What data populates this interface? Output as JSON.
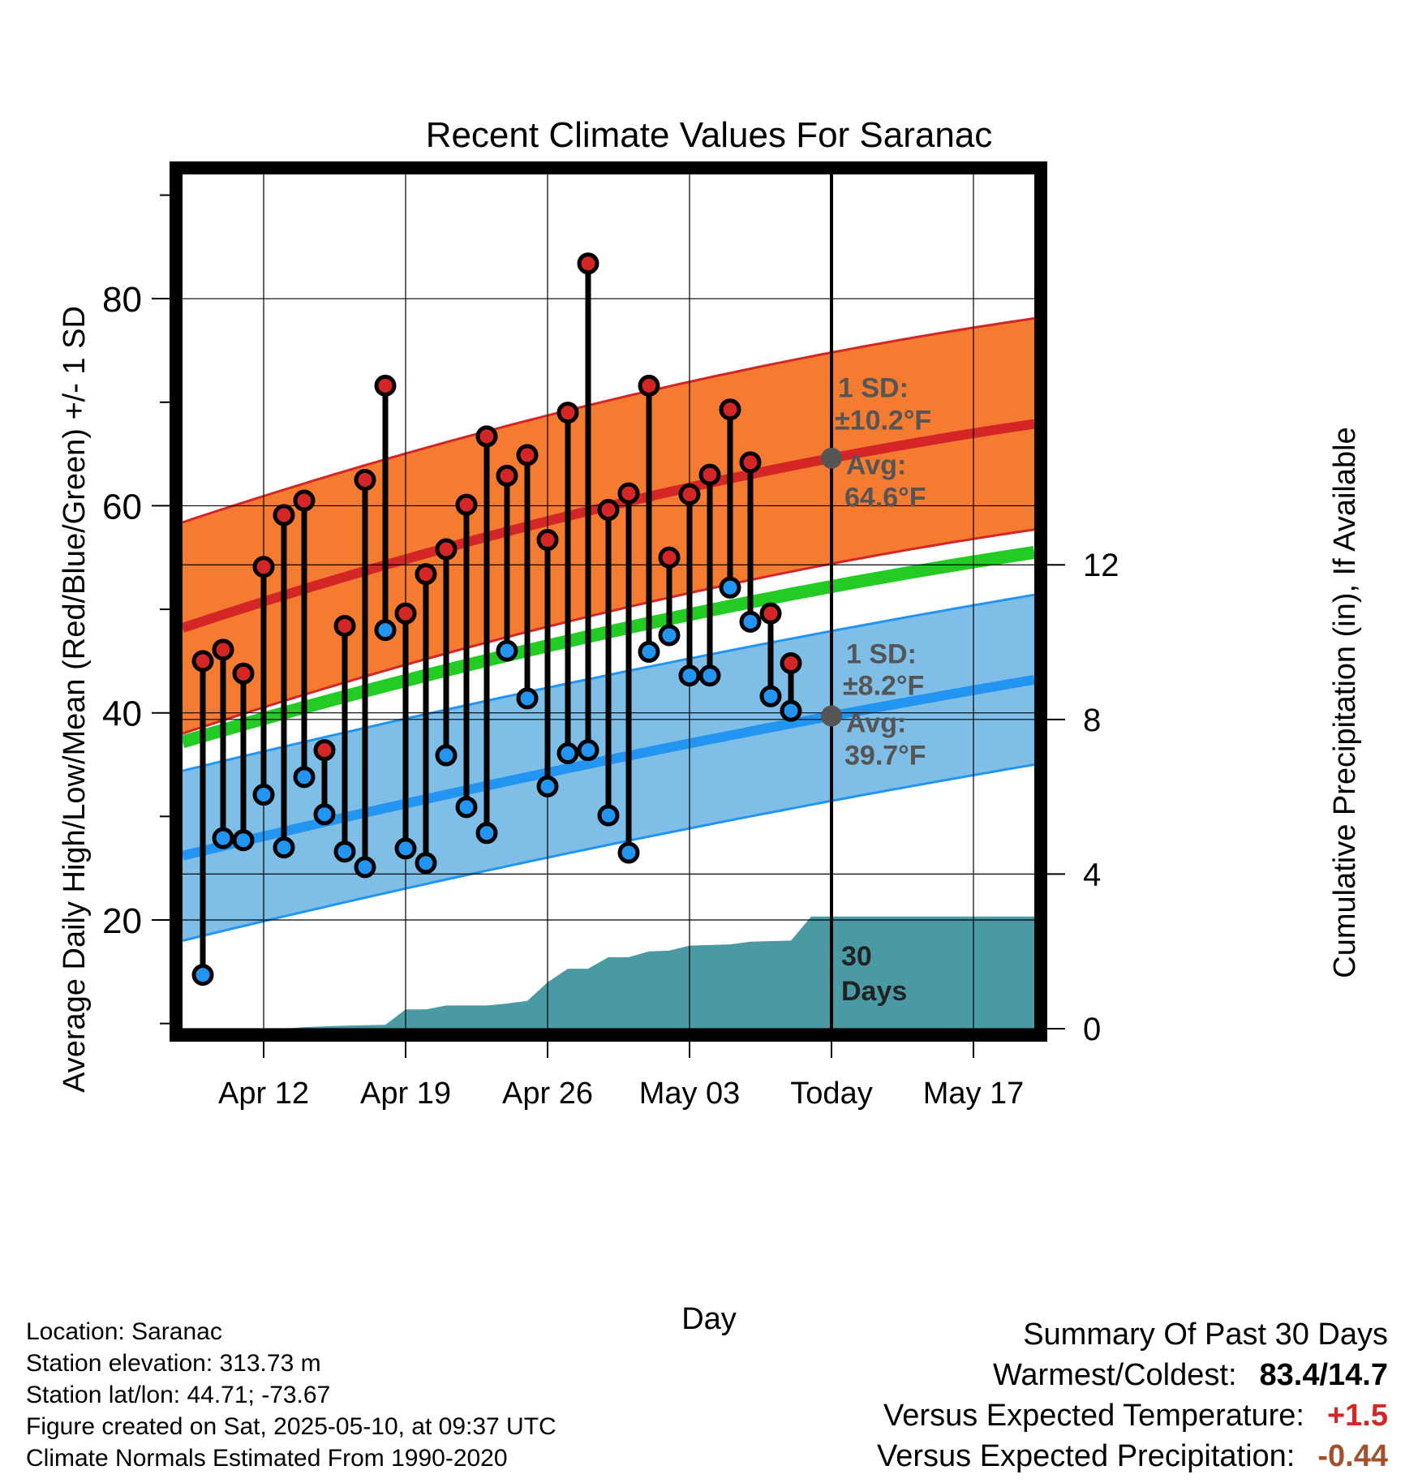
{
  "chart_data": {
    "type": "line",
    "title": "Recent Climate Values For Saranac",
    "xlabel": "Day",
    "ylabel": "Average Daily High/Low/Mean (Red/Blue/Green) +/- 1 SD",
    "y2label": "Cumulative Precipitation (in), If Available",
    "ylim": [
      9.5,
      92
    ],
    "y2lim": [
      0,
      22.1
    ],
    "xlim": [
      "2025-04-08",
      "2025-05-20"
    ],
    "x_ticks": [
      "2025-04-12",
      "2025-04-19",
      "2025-04-26",
      "2025-05-03",
      "2025-05-10",
      "2025-05-17"
    ],
    "x_tick_labels": [
      "Apr 12",
      "Apr 19",
      "Apr 26",
      "May 03",
      "Today",
      "May 17"
    ],
    "y_ticks": [
      20,
      40,
      60,
      80
    ],
    "y2_ticks": [
      0,
      4,
      8,
      12
    ],
    "today": "2025-05-10",
    "grid": true,
    "days": [
      "2025-04-09",
      "2025-04-10",
      "2025-04-11",
      "2025-04-12",
      "2025-04-13",
      "2025-04-14",
      "2025-04-15",
      "2025-04-16",
      "2025-04-17",
      "2025-04-18",
      "2025-04-19",
      "2025-04-20",
      "2025-04-21",
      "2025-04-22",
      "2025-04-23",
      "2025-04-24",
      "2025-04-25",
      "2025-04-26",
      "2025-04-27",
      "2025-04-28",
      "2025-04-29",
      "2025-04-30",
      "2025-05-01",
      "2025-05-02",
      "2025-05-03",
      "2025-05-04",
      "2025-05-05",
      "2025-05-06",
      "2025-05-07",
      "2025-05-08",
      "2025-05-09"
    ],
    "daily_high": [
      45.0,
      46.1,
      43.8,
      54.1,
      59.1,
      60.5,
      36.4,
      48.4,
      62.5,
      71.6,
      49.6,
      53.4,
      55.8,
      60.1,
      66.7,
      62.9,
      64.9,
      56.7,
      69.0,
      83.4,
      59.6,
      61.2,
      71.6,
      55.0,
      61.1,
      63.0,
      69.3,
      64.2,
      49.6,
      44.8,
      null
    ],
    "daily_low": [
      14.7,
      27.9,
      27.7,
      32.1,
      27.0,
      33.8,
      30.2,
      26.6,
      25.1,
      48.0,
      26.9,
      25.5,
      35.9,
      30.9,
      28.4,
      46.0,
      41.4,
      32.9,
      36.1,
      36.4,
      30.1,
      26.5,
      45.9,
      47.5,
      43.6,
      43.6,
      52.1,
      48.8,
      41.6,
      40.2,
      null
    ],
    "normal_high": {
      "start": 48.2,
      "today": 64.6,
      "end": 67.9
    },
    "normal_low": {
      "start": 26.2,
      "today": 39.7,
      "end": 43.2
    },
    "normal_mean": {
      "start": 37.2,
      "today": 52.2,
      "end": 55.5
    },
    "high_sd": 10.2,
    "low_sd": 8.2,
    "cumulative_precip": [
      {
        "date": "2025-04-08",
        "in": 0.0
      },
      {
        "date": "2025-04-13",
        "in": 0.0
      },
      {
        "date": "2025-04-14",
        "in": 0.04
      },
      {
        "date": "2025-04-16",
        "in": 0.08
      },
      {
        "date": "2025-04-18",
        "in": 0.1
      },
      {
        "date": "2025-04-19",
        "in": 0.5
      },
      {
        "date": "2025-04-20",
        "in": 0.5
      },
      {
        "date": "2025-04-21",
        "in": 0.6
      },
      {
        "date": "2025-04-23",
        "in": 0.6
      },
      {
        "date": "2025-04-24",
        "in": 0.65
      },
      {
        "date": "2025-04-25",
        "in": 0.72
      },
      {
        "date": "2025-04-26",
        "in": 1.2
      },
      {
        "date": "2025-04-27",
        "in": 1.55
      },
      {
        "date": "2025-04-28",
        "in": 1.55
      },
      {
        "date": "2025-04-29",
        "in": 1.85
      },
      {
        "date": "2025-04-30",
        "in": 1.85
      },
      {
        "date": "2025-05-01",
        "in": 2.0
      },
      {
        "date": "2025-05-02",
        "in": 2.02
      },
      {
        "date": "2025-05-03",
        "in": 2.15
      },
      {
        "date": "2025-05-05",
        "in": 2.18
      },
      {
        "date": "2025-05-06",
        "in": 2.25
      },
      {
        "date": "2025-05-08",
        "in": 2.28
      },
      {
        "date": "2025-05-09",
        "in": 2.9
      },
      {
        "date": "2025-05-20",
        "in": 2.9
      }
    ],
    "annotations": {
      "high_sd_line1": "1 SD:",
      "high_sd_line2": "±10.2°F",
      "high_avg_line1": "Avg:",
      "high_avg_line2": "64.6°F",
      "low_sd_line1": "1 SD:",
      "low_sd_line2": "±8.2°F",
      "low_avg_line1": "Avg:",
      "low_avg_line2": "39.7°F",
      "days_line1": "30",
      "days_line2": "Days"
    },
    "colors": {
      "high_band": "#f47b30",
      "high_line": "#d42626",
      "low_band": "#7fbfe7",
      "low_line": "#2295f2",
      "mean_line": "#22cc22",
      "precip": "#4a9aa3",
      "high_dot": "#d42626",
      "low_dot": "#2295f2",
      "avg_marker": "#555555"
    }
  },
  "info": {
    "location": "Location: Saranac",
    "elevation": "Station elevation: 313.73 m",
    "latlon": "Station lat/lon: 44.71; -73.67",
    "created": "Figure created on Sat, 2025-05-10, at 09:37 UTC",
    "normals": "Climate Normals Estimated From 1990-2020"
  },
  "summary": {
    "title": "Summary Of Past 30 Days",
    "warm_label": "Warmest/Coldest:",
    "warm_value": "83.4/14.7",
    "temp_label": "Versus Expected Temperature:",
    "temp_value": "+1.5",
    "temp_color": "#d42626",
    "precip_label": "Versus Expected Precipitation:",
    "precip_value": "-0.44",
    "precip_color": "#a0522d"
  }
}
